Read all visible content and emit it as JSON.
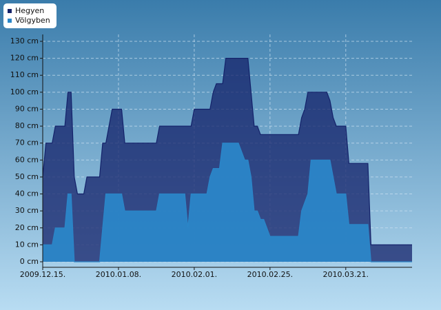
{
  "chart_data": {
    "type": "area",
    "series": [
      {
        "name": "Hegyen",
        "color": "#14226a",
        "x": [
          0,
          1,
          3,
          4,
          7,
          8,
          9,
          10,
          11,
          13,
          14,
          18,
          19,
          20,
          22,
          25,
          26,
          36,
          37,
          47,
          48,
          53,
          54,
          55,
          57,
          58,
          65,
          67,
          68,
          69,
          81,
          82,
          83,
          84,
          90,
          91,
          92,
          93,
          96,
          97,
          103,
          104,
          117
        ],
        "values": [
          50,
          70,
          70,
          80,
          80,
          100,
          100,
          50,
          40,
          40,
          50,
          50,
          70,
          70,
          90,
          90,
          70,
          70,
          80,
          80,
          90,
          90,
          100,
          105,
          105,
          120,
          120,
          80,
          80,
          75,
          75,
          85,
          90,
          100,
          100,
          95,
          85,
          80,
          80,
          58,
          58,
          10,
          10
        ]
      },
      {
        "name": "Völgyben",
        "color": "#2b86c8",
        "x": [
          0,
          3,
          4,
          7,
          8,
          9,
          10,
          18,
          19,
          20,
          25,
          26,
          36,
          37,
          45,
          46,
          47,
          52,
          53,
          54,
          56,
          57,
          62,
          64,
          65,
          66,
          67,
          68,
          69,
          70,
          71,
          72,
          81,
          82,
          84,
          85,
          91,
          92,
          93,
          96,
          97,
          103,
          104,
          117
        ],
        "values": [
          10,
          10,
          20,
          20,
          40,
          40,
          0,
          0,
          20,
          40,
          40,
          30,
          30,
          40,
          40,
          20,
          40,
          40,
          50,
          55,
          55,
          70,
          70,
          60,
          60,
          50,
          30,
          30,
          25,
          25,
          20,
          15,
          15,
          30,
          40,
          60,
          60,
          50,
          40,
          40,
          22,
          22,
          0,
          0
        ]
      }
    ],
    "xlim": [
      0,
      117
    ],
    "xticks": [
      {
        "value": 0,
        "label": "2009.12.15."
      },
      {
        "value": 24,
        "label": "2010.01.08."
      },
      {
        "value": 48,
        "label": "2010.02.01."
      },
      {
        "value": 72,
        "label": "2010.02.25."
      },
      {
        "value": 96,
        "label": "2010.03.21."
      }
    ],
    "ylim": [
      0,
      130
    ],
    "yticks": [
      {
        "value": 0,
        "label": "0 cm"
      },
      {
        "value": 10,
        "label": "10 cm"
      },
      {
        "value": 20,
        "label": "20 cm"
      },
      {
        "value": 30,
        "label": "30 cm"
      },
      {
        "value": 40,
        "label": "40 cm"
      },
      {
        "value": 50,
        "label": "50 cm"
      },
      {
        "value": 60,
        "label": "60 cm"
      },
      {
        "value": 70,
        "label": "70 cm"
      },
      {
        "value": 80,
        "label": "80 cm"
      },
      {
        "value": 90,
        "label": "90 cm"
      },
      {
        "value": 100,
        "label": "100 cm"
      },
      {
        "value": 110,
        "label": "110 cm"
      },
      {
        "value": 120,
        "label": "120 cm"
      },
      {
        "value": 130,
        "label": "130 cm"
      }
    ],
    "grid": true
  }
}
